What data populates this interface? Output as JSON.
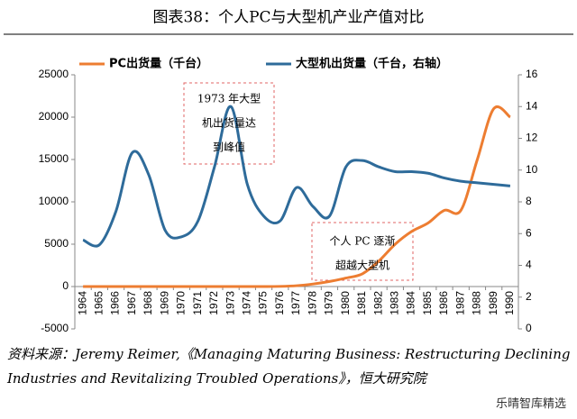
{
  "chart_data": {
    "type": "line",
    "title": "图表38：个人PC与大型机产业产值对比",
    "categories": [
      "1964",
      "1965",
      "1966",
      "1967",
      "1968",
      "1969",
      "1970",
      "1971",
      "1972",
      "1973",
      "1974",
      "1975",
      "1976",
      "1977",
      "1978",
      "1979",
      "1980",
      "1981",
      "1982",
      "1983",
      "1984",
      "1985",
      "1986",
      "1987",
      "1988",
      "1989",
      "1990"
    ],
    "series": [
      {
        "name": "PC出货量（千台）",
        "color": "#ed7d31",
        "values": [
          0,
          0,
          0,
          0,
          0,
          0,
          0,
          0,
          0,
          0,
          0,
          0,
          20,
          100,
          300,
          600,
          1000,
          1500,
          3000,
          5000,
          6500,
          7500,
          9000,
          9000,
          15000,
          21000,
          20000
        ]
      },
      {
        "name": "大型机出货量（千台，右轴）",
        "color": "#2e6b9a",
        "axis": "y2",
        "values": [
          5.6,
          5.3,
          7.4,
          11.1,
          9.7,
          6.2,
          5.8,
          6.8,
          10.2,
          14.0,
          9.1,
          7.1,
          6.8,
          8.9,
          7.7,
          7.1,
          10.2,
          10.6,
          10.2,
          9.9,
          9.9,
          9.8,
          9.5,
          9.3,
          9.2,
          9.1,
          9.0
        ]
      }
    ],
    "ylim": [
      -5000,
      25000
    ],
    "yticks": [
      -5000,
      0,
      5000,
      10000,
      15000,
      20000,
      25000
    ],
    "y2lim": [
      0,
      16
    ],
    "y2ticks": [
      0,
      2,
      4,
      6,
      8,
      10,
      12,
      14,
      16
    ],
    "annotations": [
      {
        "lines": [
          "1973 年大型",
          "机出货量达",
          "到峰值"
        ]
      },
      {
        "lines": [
          "个人 PC 逐渐",
          "超越大型机"
        ]
      }
    ],
    "source": "资料来源：Jeremy Reimer,《Managing Maturing Business: Restructuring Declining Industries and Revitalizing Troubled Operations》，恒大研究院",
    "watermark": "乐晴智库精选"
  }
}
